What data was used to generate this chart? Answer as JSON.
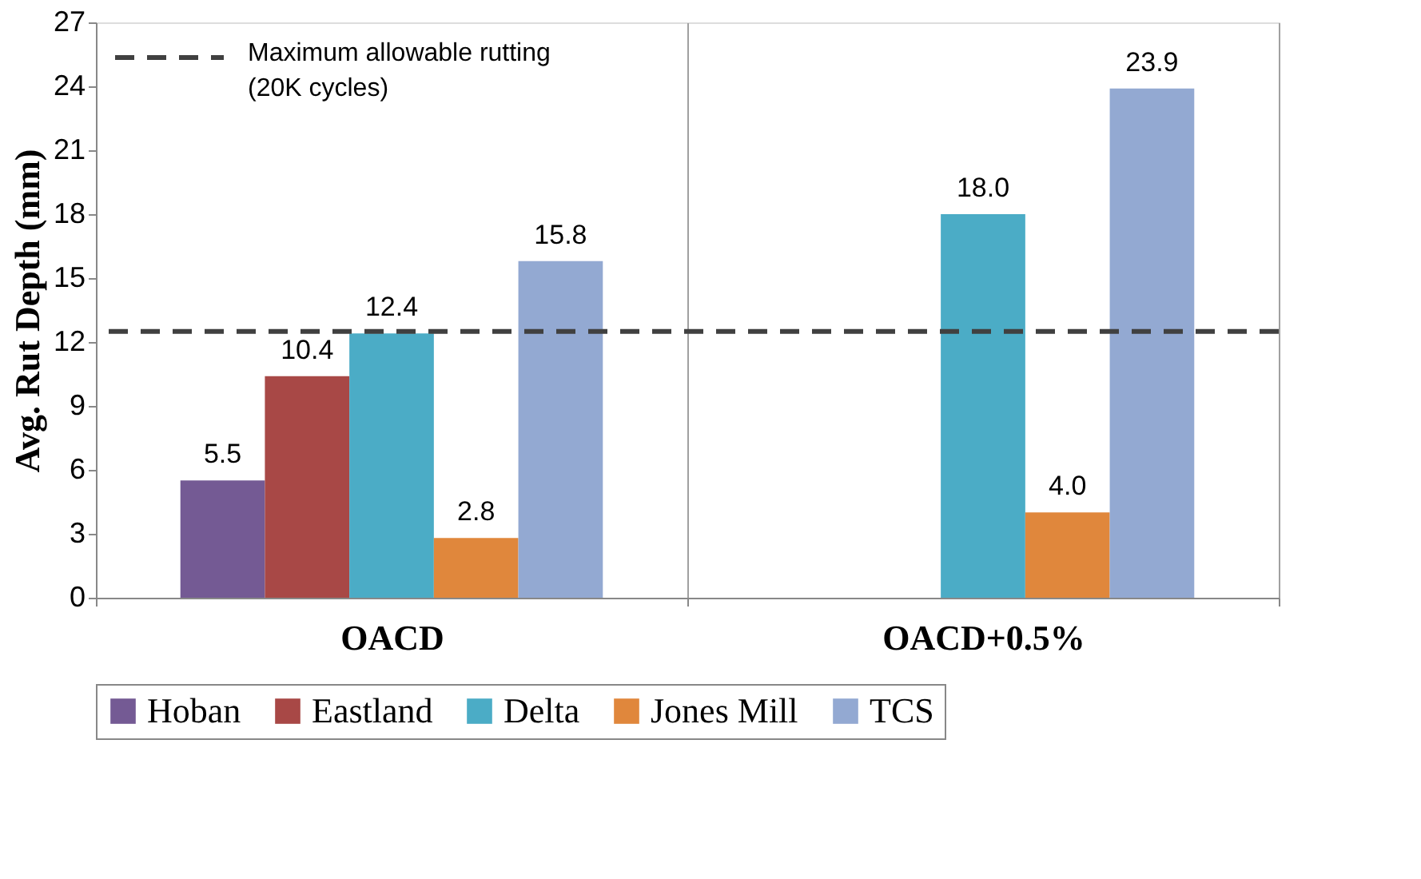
{
  "chart_data": {
    "type": "bar",
    "ylabel": "Avg. Rut Depth (mm)",
    "categories": [
      "OACD",
      "OACD+0.5%"
    ],
    "series": [
      {
        "name": "Hoban",
        "color": "#745a94",
        "values": [
          5.5,
          null
        ],
        "value_labels": [
          "5.5",
          null
        ]
      },
      {
        "name": "Eastland",
        "color": "#a84846",
        "values": [
          10.4,
          null
        ],
        "value_labels": [
          "10.4",
          null
        ]
      },
      {
        "name": "Delta",
        "color": "#4bacc6",
        "values": [
          12.4,
          18.0
        ],
        "value_labels": [
          "12.4",
          "18.0"
        ]
      },
      {
        "name": "Jones Mill",
        "color": "#e0873c",
        "values": [
          2.8,
          4.0
        ],
        "value_labels": [
          "2.8",
          "4.0"
        ]
      },
      {
        "name": "TCS",
        "color": "#93a9d2",
        "values": [
          15.8,
          23.9
        ],
        "value_labels": [
          "15.8",
          "23.9"
        ]
      }
    ],
    "ylim": [
      0,
      27
    ],
    "yticks": [
      0,
      3,
      6,
      9,
      12,
      15,
      18,
      21,
      24,
      27
    ],
    "grid": "x",
    "legend": "bottom",
    "ref_lines": [
      {
        "axis": "y",
        "value": 12.5,
        "label": "Maximum allowable rutting\n(20K cycles)",
        "color": "#404040",
        "line_style": "dashed"
      }
    ]
  }
}
